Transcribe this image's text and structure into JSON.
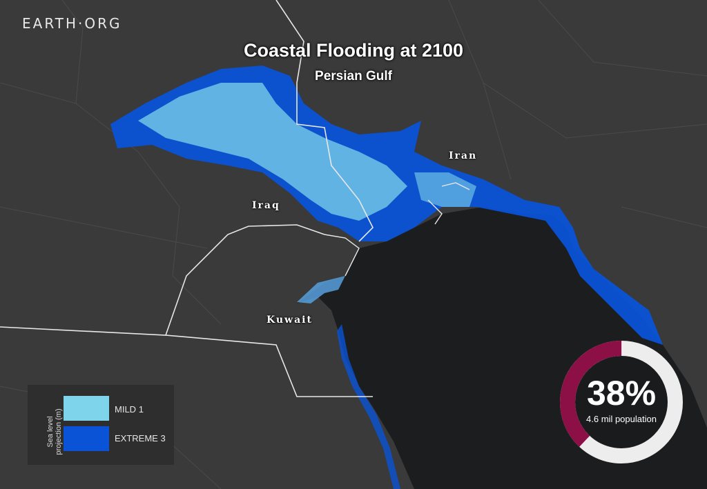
{
  "brand": "EARTH·ORG",
  "title": "Coastal Flooding at 2100",
  "subtitle": "Persian Gulf",
  "labels": {
    "iran": "Iran",
    "iraq": "Iraq",
    "kuwait": "Kuwait"
  },
  "legend": {
    "axis_label_line1": "Sea level",
    "axis_label_line2": "projection (m)",
    "items": [
      {
        "label": "MILD",
        "value": "1",
        "color": "#7ed4ea"
      },
      {
        "label": "EXTREME",
        "value": "3",
        "color": "#0a52d6"
      }
    ]
  },
  "stat": {
    "percent": "38%",
    "percent_value": 38,
    "caption": "4.6 mil population",
    "ring_fill_color": "#8c0f45",
    "ring_track_color": "#ededed"
  },
  "colors": {
    "land": "#3a3a3a",
    "sea": "#1c1d1f",
    "mild": "#7ed4ea",
    "extreme": "#0a52d6",
    "border": "#e8e8e8"
  }
}
